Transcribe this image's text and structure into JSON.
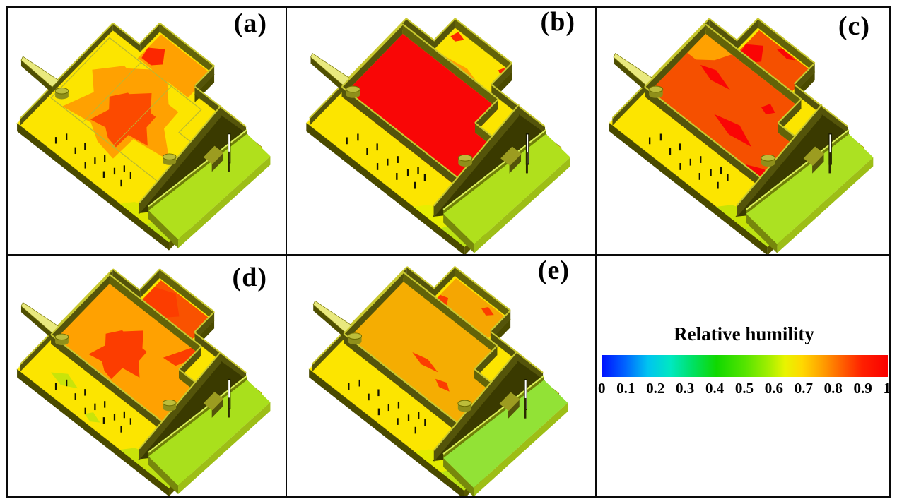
{
  "figure": {
    "panels": [
      {
        "id": "a",
        "label": "(a)",
        "colors": {
          "floor": "#FFA101",
          "core": "#FC4A00",
          "annex": "#FFA101",
          "annexPatch": "#FC2800",
          "platform": "#B0E01C",
          "tinge": "#DDE800"
        }
      },
      {
        "id": "b",
        "label": "(b)",
        "colors": {
          "floor": "#F90606",
          "core": "#FC2000",
          "annex": "#FCE500",
          "annexPatch": "#FC2800",
          "platform": "#B0E01C",
          "tinge": "#E8EE00"
        }
      },
      {
        "id": "c",
        "label": "(c)",
        "colors": {
          "floor": "#F55000",
          "core": "#FA0505",
          "annex": "#F55000",
          "annexPatch": "#FA0505",
          "platform": "#ACE122",
          "tinge": "#C8E405"
        }
      },
      {
        "id": "d",
        "label": "(d)",
        "colors": {
          "floor": "#FFA101",
          "core": "#FC3D00",
          "annex": "#F95200",
          "annexPatch": "#FC3D00",
          "platform": "#A9E01C",
          "tinge": "#C9E40A"
        }
      },
      {
        "id": "e",
        "label": "(e)",
        "colors": {
          "floor": "#F5AD02",
          "core": "#FC3D00",
          "annex": "#F5A602",
          "annexPatch": "#FC3D00",
          "platform": "#92E236",
          "tinge": "#E4EC00"
        }
      }
    ],
    "legend": {
      "title": "Relative humility",
      "ticks": [
        "0",
        "0.1",
        "0.2",
        "0.3",
        "0.4",
        "0.5",
        "0.6",
        "0.7",
        "0.8",
        "0.9",
        "1"
      ],
      "range": [
        0,
        1
      ],
      "gradient": [
        [
          0,
          "#0012FF"
        ],
        [
          0.08,
          "#0064FF"
        ],
        [
          0.16,
          "#00C4F0"
        ],
        [
          0.24,
          "#00E8C0"
        ],
        [
          0.32,
          "#00E060"
        ],
        [
          0.4,
          "#10D800"
        ],
        [
          0.5,
          "#55E400"
        ],
        [
          0.58,
          "#A0EE00"
        ],
        [
          0.64,
          "#E8F400"
        ],
        [
          0.7,
          "#FFD800"
        ],
        [
          0.77,
          "#FFA000"
        ],
        [
          0.84,
          "#FF6000"
        ],
        [
          0.91,
          "#FF2000"
        ],
        [
          1,
          "#FA0000"
        ]
      ]
    },
    "palette": {
      "apron": "#FCE500",
      "mid_orange": "#FFA101",
      "tinge2": "#BCE312",
      "floor_side": "#4A4A00",
      "floor_side2": "#585800",
      "wall_dark": "#54540A",
      "wall_dark2": "#636308",
      "wall_top": "#C9C930",
      "gap": "#3A3A00",
      "plat_back": "#6F7F08",
      "plat_rim": "#D9EE57",
      "plat_front": "#9DBE16",
      "plat_left": "#77880C",
      "chimney_top": "#E9E97E",
      "chimney_side": "#4F4F02",
      "cyl_body": "#8F8F1A",
      "cyl_top": "#BDBD3A",
      "cyl_edge": "#6A6A00",
      "dash": "#141400",
      "fence": "#B9B932",
      "box_top": "#9C9C20",
      "post_white": "#FFFFFF",
      "post_dark": "#2A2A00"
    }
  }
}
